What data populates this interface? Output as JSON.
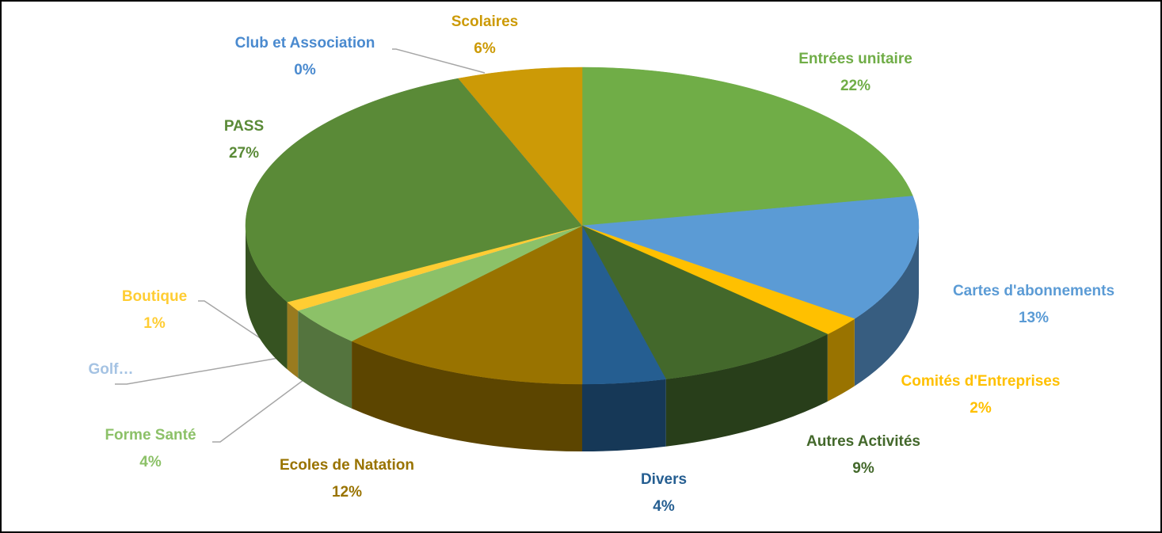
{
  "chart_data": {
    "type": "pie3d",
    "categories": [
      "Entrées unitaire",
      "Cartes d'abonnements",
      "Comités d'Entreprises",
      "Autres Activités",
      "Divers",
      "Ecoles de Natation",
      "Forme Santé",
      "Golf…",
      "Boutique",
      "PASS",
      "Club et Association",
      "Scolaires"
    ],
    "values": [
      22,
      13,
      2,
      9,
      4,
      12,
      4,
      0,
      1,
      27,
      0,
      6
    ],
    "value_labels": [
      "22%",
      "13%",
      "2%",
      "9%",
      "4%",
      "12%",
      "4%",
      null,
      "1%",
      "27%",
      "0%",
      "6%"
    ],
    "colors": [
      "#70ad47",
      "#5b9bd5",
      "#ffc000",
      "#43682b",
      "#255e91",
      "#997300",
      "#8cc168",
      "#a5c3e3",
      "#ffcd33",
      "#5a8a37",
      "#4a8acf",
      "#cc9a06"
    ]
  }
}
